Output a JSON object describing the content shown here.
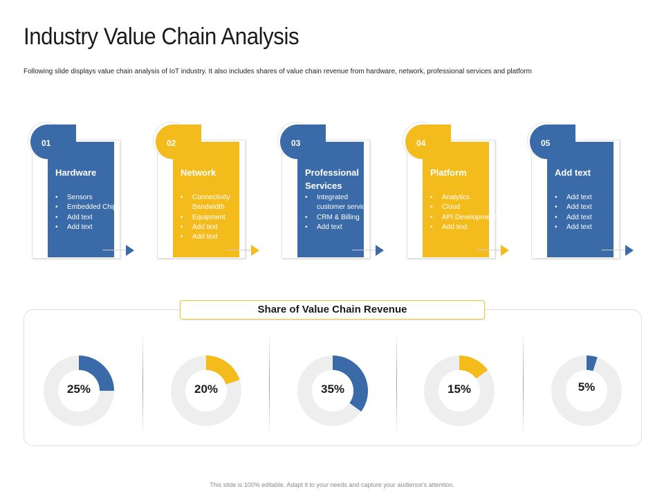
{
  "slide": {
    "title": "Industry Value Chain Analysis",
    "subtitle": "Following slide displays value chain analysis of IoT industry. It also includes shares of value chain revenue from hardware, network, professional services and platform",
    "footer": "This slide is 100% editable. Adapt it to your needs and capture your audience's attention."
  },
  "colors": {
    "blue": "#3a6aa8",
    "yellow": "#f4bb1c",
    "track": "#eeeeee"
  },
  "cards": [
    {
      "number": "01",
      "name": "Hardware",
      "color": "blue",
      "items": [
        "Sensors",
        "Embedded Chips",
        "Add text",
        "Add text"
      ]
    },
    {
      "number": "02",
      "name": "Network",
      "color": "yellow",
      "items": [
        "Connectivity Bandwidth",
        "Equipment",
        "Add text",
        "Add text"
      ]
    },
    {
      "number": "03",
      "name": "Professional Services",
      "color": "blue",
      "items": [
        "Integrated customer service",
        "CRM & Billing",
        "Add text"
      ]
    },
    {
      "number": "04",
      "name": "Platform",
      "color": "yellow",
      "items": [
        "Analytics",
        "Cloud",
        "API Development",
        "Add text"
      ]
    },
    {
      "number": "05",
      "name": "Add text",
      "color": "blue",
      "items": [
        "Add text",
        "Add text",
        "Add text",
        "Add text"
      ]
    }
  ],
  "revenue": {
    "title": "Share of Value Chain Revenue",
    "shares": [
      {
        "label": "25%",
        "value": 25,
        "color": "blue"
      },
      {
        "label": "20%",
        "value": 20,
        "color": "yellow"
      },
      {
        "label": "35%",
        "value": 35,
        "color": "blue"
      },
      {
        "label": "15%",
        "value": 15,
        "color": "yellow"
      },
      {
        "label": "5%",
        "value": 5,
        "color": "blue"
      }
    ]
  }
}
